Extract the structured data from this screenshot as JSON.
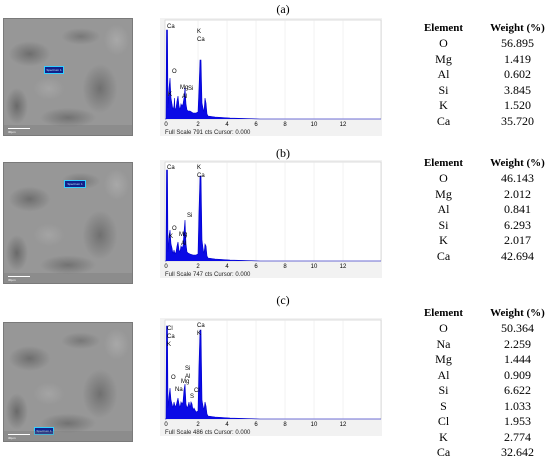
{
  "panels": [
    {
      "label": "(a)",
      "sem": {
        "spectrum_label": "Spectrum 1",
        "scale_label": "30µm"
      },
      "spectrum": {
        "footer": "Full Scale 791 cts Cursor: 0.000",
        "peak_labels": [
          "Ca",
          "O",
          "K",
          "Mg",
          "Al",
          "Si",
          "K",
          "Ca"
        ],
        "x_ticks": [
          "0",
          "2",
          "4",
          "6",
          "8",
          "10",
          "12"
        ]
      },
      "table": {
        "headers": [
          "Element",
          "Weight (%)"
        ],
        "rows": [
          [
            "O",
            "56.895"
          ],
          [
            "Mg",
            "1.419"
          ],
          [
            "Al",
            "0.602"
          ],
          [
            "Si",
            "3.845"
          ],
          [
            "K",
            "1.520"
          ],
          [
            "Ca",
            "35.720"
          ]
        ]
      }
    },
    {
      "label": "(b)",
      "sem": {
        "spectrum_label": "Spectrum 1",
        "scale_label": "30µm"
      },
      "spectrum": {
        "footer": "Full Scale 747 cts Cursor: 0.000",
        "peak_labels": [
          "Ca",
          "O",
          "K",
          "Mg",
          "Al",
          "Si",
          "K",
          "Ca"
        ],
        "x_ticks": [
          "0",
          "2",
          "4",
          "6",
          "8",
          "10",
          "12"
        ]
      },
      "table": {
        "headers": [
          "Element",
          "Weight (%)"
        ],
        "rows": [
          [
            "O",
            "46.143"
          ],
          [
            "Mg",
            "2.012"
          ],
          [
            "Al",
            "0.841"
          ],
          [
            "Si",
            "6.293"
          ],
          [
            "K",
            "2.017"
          ],
          [
            "Ca",
            "42.694"
          ]
        ]
      }
    },
    {
      "label": "(c)",
      "sem": {
        "spectrum_label": "Spectrum 1",
        "scale_label": "30µm"
      },
      "spectrum": {
        "footer": "Full Scale 486 cts Cursor: 0.000",
        "peak_labels": [
          "Cl",
          "Ca",
          "K",
          "O",
          "Na",
          "Mg",
          "Si",
          "Al",
          "S",
          "Cl",
          "Ca",
          "K"
        ],
        "x_ticks": [
          "0",
          "2",
          "4",
          "6",
          "8",
          "10",
          "12"
        ]
      },
      "table": {
        "headers": [
          "Element",
          "Weight (%)"
        ],
        "rows": [
          [
            "O",
            "50.364"
          ],
          [
            "Na",
            "2.259"
          ],
          [
            "Mg",
            "1.444"
          ],
          [
            "Al",
            "0.909"
          ],
          [
            "Si",
            "6.622"
          ],
          [
            "S",
            "1.033"
          ],
          [
            "Cl",
            "1.953"
          ],
          [
            "K",
            "2.774"
          ],
          [
            "Ca",
            "32.642"
          ]
        ]
      }
    }
  ]
}
